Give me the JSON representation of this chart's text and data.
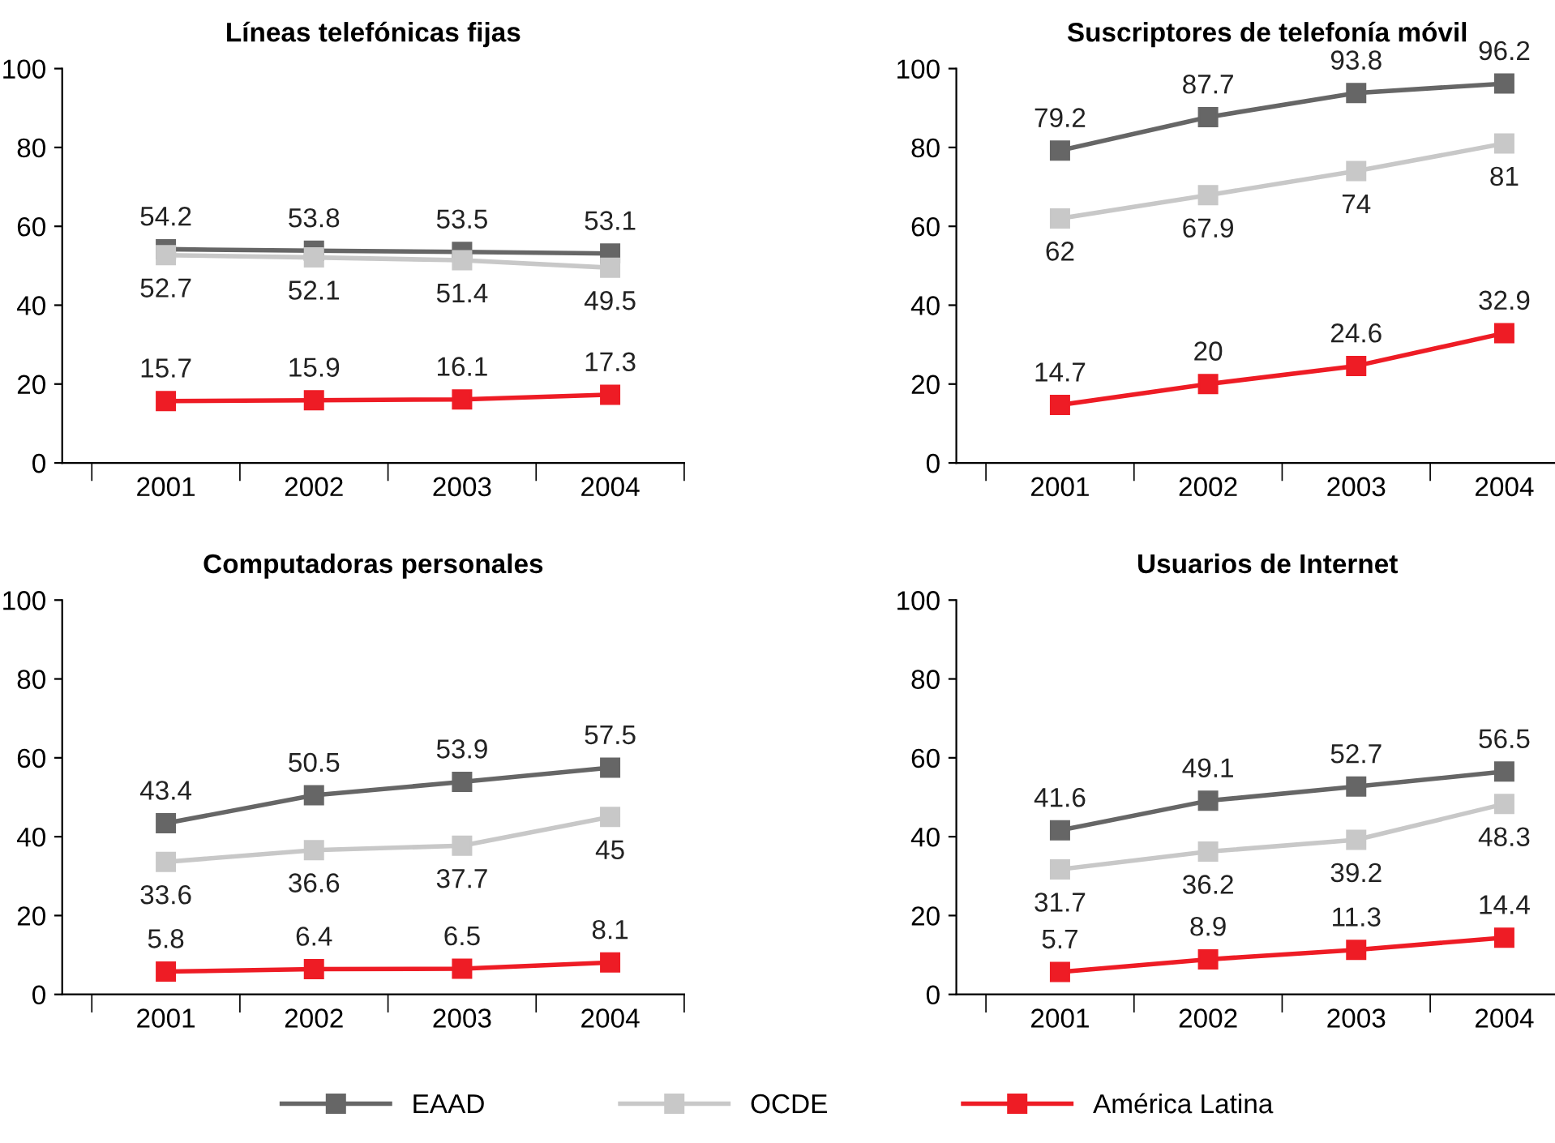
{
  "chart_data": [
    {
      "type": "line",
      "title": "Líneas telefónicas fijas",
      "categories": [
        "2001",
        "2002",
        "2003",
        "2004"
      ],
      "ylim": [
        0,
        100
      ],
      "yticks": [
        0,
        20,
        40,
        60,
        80,
        100
      ],
      "marker": "square",
      "data_labels": true,
      "legend": "bottom",
      "series": [
        {
          "name": "EAAD",
          "color": "#666666",
          "values": [
            54.2,
            53.8,
            53.5,
            53.1
          ]
        },
        {
          "name": "OCDE",
          "color": "#c8c8c8",
          "values": [
            52.7,
            52.1,
            51.4,
            49.5
          ]
        },
        {
          "name": "América Latina",
          "color": "#ee1c25",
          "values": [
            15.7,
            15.9,
            16.1,
            17.3
          ]
        }
      ]
    },
    {
      "type": "line",
      "title": "Suscriptores de telefonía móvil",
      "categories": [
        "2001",
        "2002",
        "2003",
        "2004"
      ],
      "ylim": [
        0,
        100
      ],
      "yticks": [
        0,
        20,
        40,
        60,
        80,
        100
      ],
      "marker": "square",
      "data_labels": true,
      "series": [
        {
          "color": "#666666",
          "values": [
            79.2,
            87.7,
            93.8,
            96.2
          ]
        },
        {
          "color": "#c8c8c8",
          "values": [
            62,
            67.9,
            74,
            81
          ]
        },
        {
          "color": "#ee1c25",
          "values": [
            14.7,
            20,
            24.6,
            32.9
          ]
        }
      ]
    },
    {
      "type": "line",
      "title": "Computadoras personales",
      "categories": [
        "2001",
        "2002",
        "2003",
        "2004"
      ],
      "ylim": [
        0,
        100
      ],
      "yticks": [
        0,
        20,
        40,
        60,
        80,
        100
      ],
      "marker": "square",
      "data_labels": true,
      "series": [
        {
          "color": "#666666",
          "values": [
            43.4,
            50.5,
            53.9,
            57.5
          ]
        },
        {
          "color": "#c8c8c8",
          "values": [
            33.6,
            36.6,
            37.7,
            45
          ]
        },
        {
          "color": "#ee1c25",
          "values": [
            5.8,
            6.4,
            6.5,
            8.1
          ]
        }
      ]
    },
    {
      "type": "line",
      "title": "Usuarios de Internet",
      "categories": [
        "2001",
        "2002",
        "2003",
        "2004"
      ],
      "ylim": [
        0,
        100
      ],
      "yticks": [
        0,
        20,
        40,
        60,
        80,
        100
      ],
      "marker": "square",
      "data_labels": true,
      "series": [
        {
          "color": "#666666",
          "values": [
            41.6,
            49.1,
            52.7,
            56.5
          ]
        },
        {
          "color": "#c8c8c8",
          "values": [
            31.7,
            36.2,
            39.2,
            48.3
          ]
        },
        {
          "color": "#ee1c25",
          "values": [
            5.7,
            8.9,
            11.3,
            14.4
          ]
        }
      ]
    }
  ]
}
